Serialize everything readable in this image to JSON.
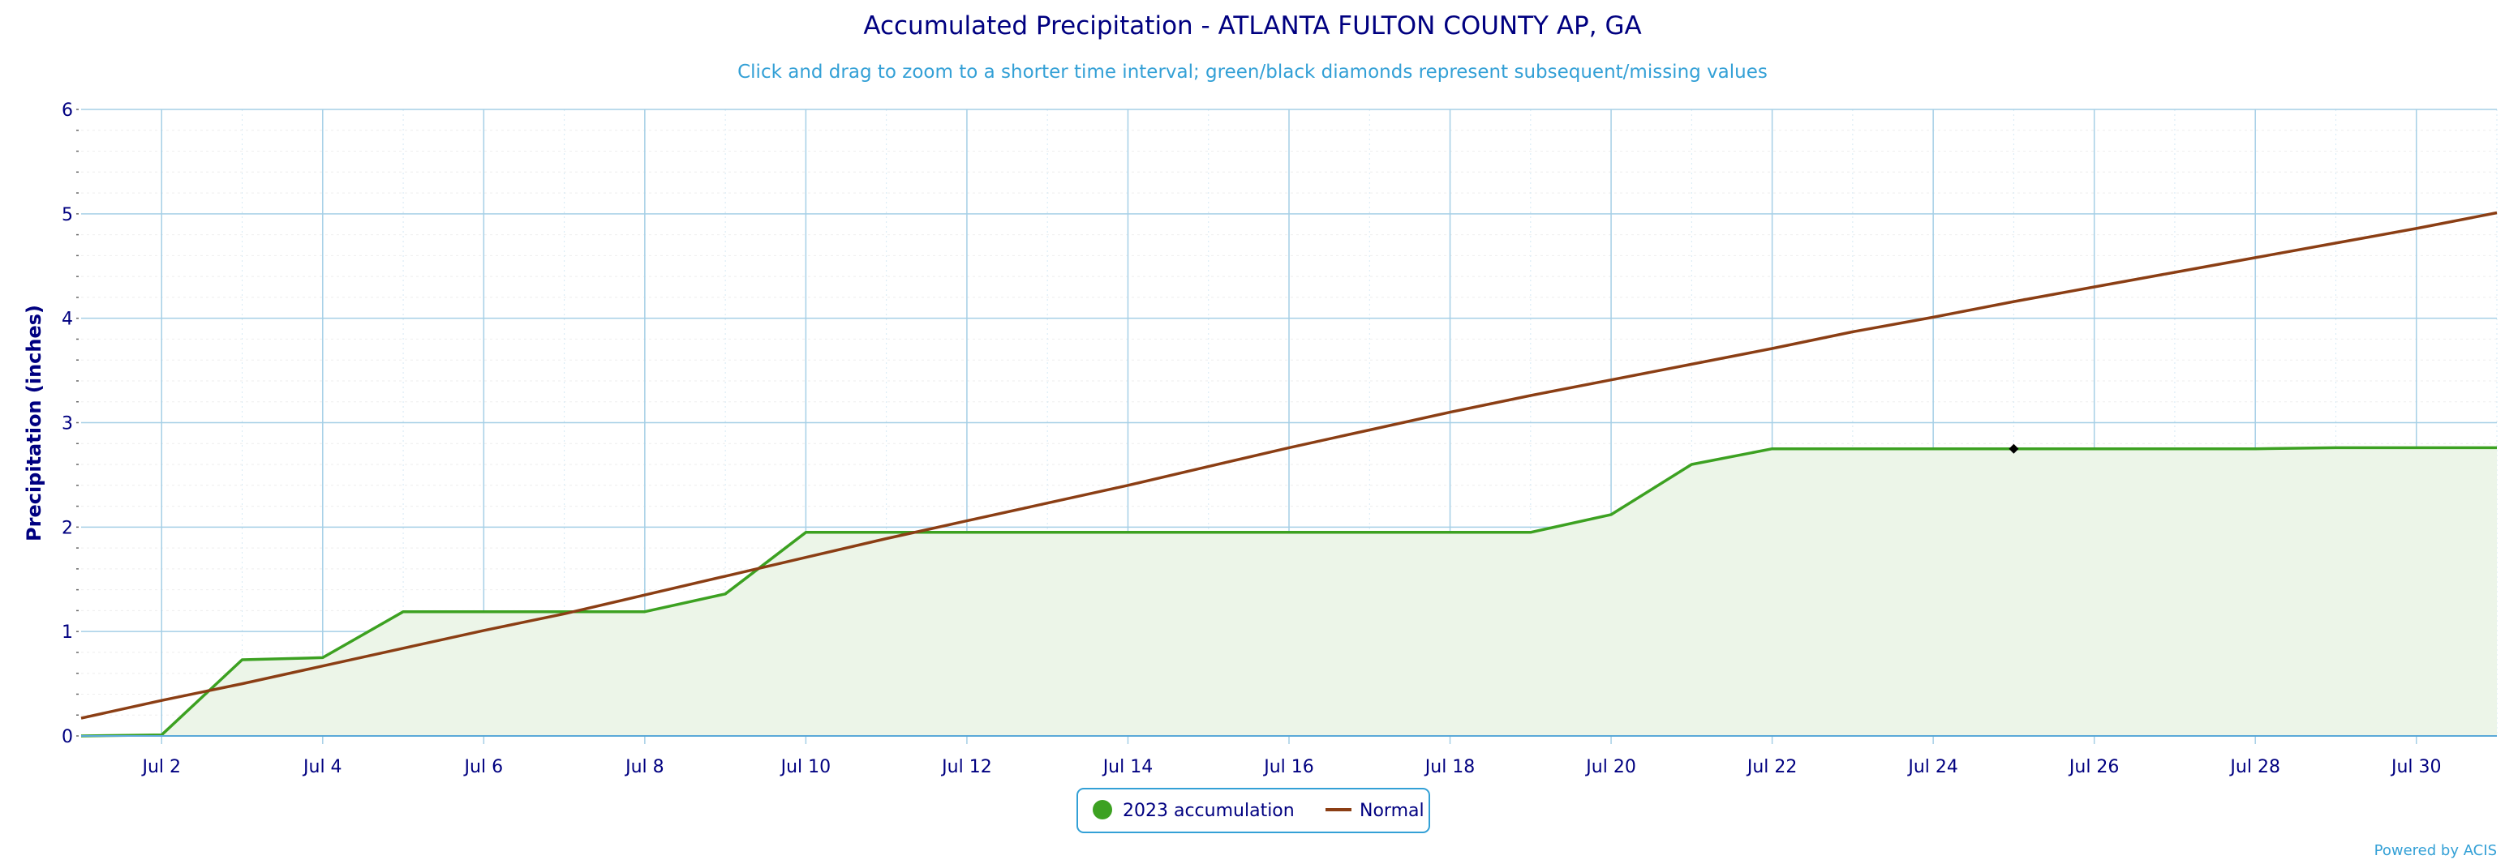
{
  "chart_data": {
    "type": "line",
    "title": "Accumulated Precipitation - ATLANTA FULTON COUNTY AP, GA",
    "subtitle": "Click and drag to zoom to a shorter time interval; green/black diamonds represent subsequent/missing values",
    "xlabel": "",
    "ylabel": "Precipitation (inches)",
    "xlim": [
      "2023-07-01",
      "2023-07-31"
    ],
    "ylim": [
      0,
      6
    ],
    "y_ticks": [
      0,
      1,
      2,
      3,
      4,
      5,
      6
    ],
    "y_tick_labels": [
      "0",
      "1",
      "2",
      "3",
      "4",
      "5",
      "6"
    ],
    "x_ticks": [
      "2023-07-02",
      "2023-07-04",
      "2023-07-06",
      "2023-07-08",
      "2023-07-10",
      "2023-07-12",
      "2023-07-14",
      "2023-07-16",
      "2023-07-18",
      "2023-07-20",
      "2023-07-22",
      "2023-07-24",
      "2023-07-26",
      "2023-07-28",
      "2023-07-30"
    ],
    "x_tick_labels": [
      "Jul 2",
      "Jul 4",
      "Jul 6",
      "Jul 8",
      "Jul 10",
      "Jul 12",
      "Jul 14",
      "Jul 16",
      "Jul 18",
      "Jul 20",
      "Jul 22",
      "Jul 24",
      "Jul 26",
      "Jul 28",
      "Jul 30"
    ],
    "grid": true,
    "legend_position": "bottom-center",
    "series": [
      {
        "name": "2023 accumulation",
        "type": "area",
        "color": "#3ca121",
        "fill_color": "#ecf5e8",
        "x": [
          "2023-07-01",
          "2023-07-02",
          "2023-07-03",
          "2023-07-04",
          "2023-07-05",
          "2023-07-06",
          "2023-07-07",
          "2023-07-08",
          "2023-07-09",
          "2023-07-10",
          "2023-07-11",
          "2023-07-12",
          "2023-07-13",
          "2023-07-14",
          "2023-07-15",
          "2023-07-16",
          "2023-07-17",
          "2023-07-18",
          "2023-07-19",
          "2023-07-20",
          "2023-07-21",
          "2023-07-22",
          "2023-07-23",
          "2023-07-24",
          "2023-07-25",
          "2023-07-26",
          "2023-07-27",
          "2023-07-28",
          "2023-07-29",
          "2023-07-30",
          "2023-07-31"
        ],
        "values": [
          0.0,
          0.01,
          0.73,
          0.75,
          1.19,
          1.19,
          1.19,
          1.19,
          1.36,
          1.95,
          1.95,
          1.95,
          1.95,
          1.95,
          1.95,
          1.95,
          1.95,
          1.95,
          1.95,
          2.12,
          2.6,
          2.75,
          2.75,
          2.75,
          2.75,
          2.75,
          2.75,
          2.75,
          2.76,
          2.76,
          2.76
        ]
      },
      {
        "name": "Normal",
        "type": "line",
        "color": "#8b3e14",
        "x": [
          "2023-07-01",
          "2023-07-02",
          "2023-07-03",
          "2023-07-04",
          "2023-07-05",
          "2023-07-06",
          "2023-07-07",
          "2023-07-08",
          "2023-07-09",
          "2023-07-10",
          "2023-07-11",
          "2023-07-12",
          "2023-07-13",
          "2023-07-14",
          "2023-07-15",
          "2023-07-16",
          "2023-07-17",
          "2023-07-18",
          "2023-07-19",
          "2023-07-20",
          "2023-07-21",
          "2023-07-22",
          "2023-07-23",
          "2023-07-24",
          "2023-07-25",
          "2023-07-26",
          "2023-07-27",
          "2023-07-28",
          "2023-07-29",
          "2023-07-30",
          "2023-07-31"
        ],
        "values": [
          0.17,
          0.34,
          0.5,
          0.67,
          0.84,
          1.01,
          1.17,
          1.35,
          1.53,
          1.71,
          1.89,
          2.06,
          2.23,
          2.4,
          2.58,
          2.76,
          2.93,
          3.1,
          3.26,
          3.41,
          3.56,
          3.71,
          3.87,
          4.01,
          4.16,
          4.3,
          4.44,
          4.58,
          4.72,
          4.86,
          5.01
        ]
      }
    ],
    "markers": [
      {
        "shape": "diamond",
        "color": "#000000",
        "x": "2023-07-25",
        "y": 2.75
      }
    ],
    "legend": [
      {
        "label": "2023 accumulation",
        "symbol": "circle",
        "color": "#3ca121"
      },
      {
        "label": "Normal",
        "symbol": "line",
        "color": "#8b3e14"
      }
    ],
    "credit": "Powered by ACIS"
  }
}
